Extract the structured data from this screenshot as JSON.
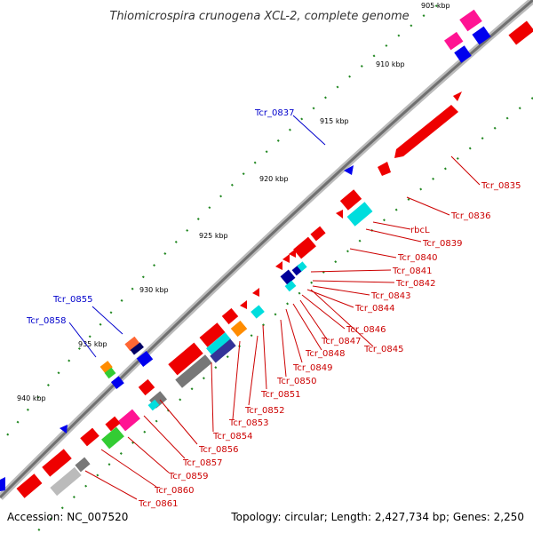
{
  "title": "Thiomicrospira crunogena XCL-2, complete genome",
  "accession": "Accession: NC_007520",
  "summary": "Topology: circular; Length: 2,427,734 bp; Genes: 2,250",
  "ticks": [
    "905 kbp",
    "910 kbp",
    "915 kbp",
    "920 kbp",
    "925 kbp",
    "930 kbp",
    "935 kbp",
    "940 kbp"
  ],
  "labels_forward": [
    "Tcr_0837",
    "Tcr_0855",
    "Tcr_0858"
  ],
  "labels_reverse": [
    "Tcr_0835",
    "Tcr_0836",
    "rbcL",
    "Tcr_0839",
    "Tcr_0840",
    "Tcr_0841",
    "Tcr_0842",
    "Tcr_0843",
    "Tcr_0844",
    "Tcr_0846",
    "Tcr_0845",
    "Tcr_0847",
    "Tcr_0848",
    "Tcr_0849",
    "Tcr_0850",
    "Tcr_0851",
    "Tcr_0852",
    "Tcr_0853",
    "Tcr_0854",
    "Tcr_0856",
    "Tcr_0857",
    "Tcr_0859",
    "Tcr_0860",
    "Tcr_0861"
  ],
  "colors": {
    "forward_label": "#0000cc",
    "reverse_label": "#cc0000",
    "backbone": "#888888",
    "gene_red": "#ee0000",
    "gene_blue": "#0000ee"
  }
}
